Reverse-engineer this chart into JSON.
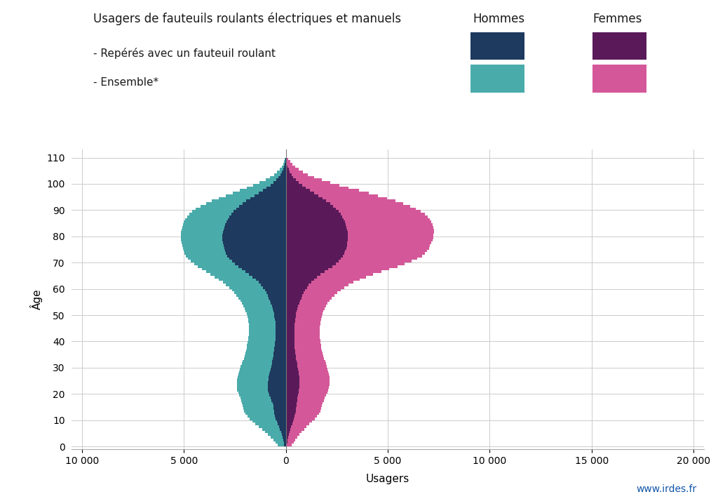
{
  "title_line1": "Usagers de fauteuils roulants électriques et manuels",
  "legend_hommes": "Hommes",
  "legend_femmes": "Femmes",
  "legend_reperes": "- Repérés avec un fauteuil roulant",
  "legend_ensemble": "- Ensemble*",
  "ylabel": "Âge",
  "xlabel": "Usagers",
  "watermark": "www.irdes.fr",
  "color_homme_reperes": "#1e3a5f",
  "color_homme_ensemble": "#4aabab",
  "color_femme_reperes": "#5a1a5a",
  "color_femme_ensemble": "#d45899",
  "xlim": [
    -10500,
    20500
  ],
  "ylim": [
    -1,
    113
  ],
  "xticks": [
    -10000,
    -5000,
    0,
    5000,
    10000,
    15000,
    20000
  ],
  "xticklabels": [
    "10 000",
    "5 000",
    "0",
    "5 000",
    "10 000",
    "15 000",
    "20 000"
  ],
  "yticks": [
    0,
    10,
    20,
    30,
    40,
    50,
    60,
    70,
    80,
    90,
    100,
    110
  ],
  "background_color": "#ffffff",
  "ages": [
    0,
    1,
    2,
    3,
    4,
    5,
    6,
    7,
    8,
    9,
    10,
    11,
    12,
    13,
    14,
    15,
    16,
    17,
    18,
    19,
    20,
    21,
    22,
    23,
    24,
    25,
    26,
    27,
    28,
    29,
    30,
    31,
    32,
    33,
    34,
    35,
    36,
    37,
    38,
    39,
    40,
    41,
    42,
    43,
    44,
    45,
    46,
    47,
    48,
    49,
    50,
    51,
    52,
    53,
    54,
    55,
    56,
    57,
    58,
    59,
    60,
    61,
    62,
    63,
    64,
    65,
    66,
    67,
    68,
    69,
    70,
    71,
    72,
    73,
    74,
    75,
    76,
    77,
    78,
    79,
    80,
    81,
    82,
    83,
    84,
    85,
    86,
    87,
    88,
    89,
    90,
    91,
    92,
    93,
    94,
    95,
    96,
    97,
    98,
    99,
    100,
    101,
    102,
    103,
    104,
    105,
    106,
    107,
    108,
    109
  ],
  "homme_reperes": [
    80,
    100,
    130,
    160,
    200,
    240,
    290,
    340,
    390,
    440,
    490,
    530,
    560,
    580,
    600,
    620,
    650,
    700,
    750,
    800,
    840,
    870,
    880,
    880,
    870,
    860,
    840,
    820,
    790,
    760,
    720,
    690,
    660,
    635,
    610,
    590,
    570,
    555,
    540,
    525,
    515,
    505,
    500,
    495,
    495,
    500,
    510,
    520,
    535,
    555,
    580,
    610,
    645,
    685,
    730,
    780,
    835,
    895,
    960,
    1030,
    1110,
    1210,
    1330,
    1470,
    1630,
    1800,
    1980,
    2160,
    2330,
    2490,
    2640,
    2770,
    2870,
    2940,
    2980,
    3020,
    3060,
    3090,
    3110,
    3120,
    3110,
    3090,
    3060,
    3020,
    2970,
    2910,
    2840,
    2760,
    2670,
    2570,
    2440,
    2290,
    2120,
    1940,
    1740,
    1540,
    1330,
    1130,
    940,
    760,
    600,
    460,
    350,
    260,
    185,
    130,
    85,
    55,
    32,
    18
  ],
  "homme_ensemble": [
    400,
    500,
    620,
    740,
    880,
    1020,
    1170,
    1330,
    1490,
    1640,
    1780,
    1890,
    1980,
    2040,
    2080,
    2110,
    2140,
    2180,
    2230,
    2280,
    2330,
    2380,
    2400,
    2410,
    2400,
    2380,
    2360,
    2330,
    2300,
    2260,
    2210,
    2160,
    2110,
    2065,
    2025,
    1990,
    1960,
    1930,
    1900,
    1875,
    1855,
    1840,
    1825,
    1815,
    1810,
    1815,
    1825,
    1840,
    1860,
    1890,
    1925,
    1970,
    2020,
    2080,
    2150,
    2230,
    2320,
    2420,
    2530,
    2650,
    2780,
    2930,
    3100,
    3280,
    3480,
    3690,
    3900,
    4110,
    4310,
    4490,
    4660,
    4800,
    4900,
    4970,
    5010,
    5040,
    5070,
    5100,
    5130,
    5150,
    5150,
    5140,
    5120,
    5090,
    5050,
    5000,
    4930,
    4840,
    4730,
    4590,
    4410,
    4180,
    3920,
    3620,
    3300,
    2960,
    2610,
    2260,
    1920,
    1590,
    1280,
    1000,
    770,
    575,
    420,
    295,
    200,
    130,
    78,
    44
  ],
  "femme_reperes": [
    60,
    75,
    95,
    120,
    150,
    185,
    225,
    270,
    315,
    360,
    405,
    440,
    470,
    490,
    505,
    515,
    530,
    550,
    575,
    600,
    625,
    645,
    658,
    665,
    665,
    660,
    650,
    638,
    620,
    600,
    575,
    550,
    525,
    502,
    482,
    465,
    450,
    438,
    428,
    422,
    418,
    415,
    414,
    415,
    418,
    424,
    433,
    445,
    460,
    480,
    505,
    535,
    570,
    610,
    655,
    705,
    760,
    820,
    885,
    955,
    1035,
    1130,
    1245,
    1380,
    1535,
    1710,
    1900,
    2090,
    2270,
    2440,
    2590,
    2710,
    2800,
    2870,
    2920,
    2960,
    2990,
    3015,
    3030,
    3040,
    3040,
    3030,
    3010,
    2980,
    2940,
    2890,
    2830,
    2760,
    2680,
    2590,
    2470,
    2330,
    2170,
    1990,
    1800,
    1600,
    1390,
    1180,
    980,
    800,
    630,
    488,
    370,
    275,
    198,
    138,
    91,
    57,
    34,
    18
  ],
  "femme_ensemble": [
    300,
    375,
    465,
    560,
    665,
    775,
    895,
    1025,
    1160,
    1290,
    1420,
    1530,
    1620,
    1690,
    1740,
    1775,
    1810,
    1855,
    1910,
    1970,
    2030,
    2080,
    2120,
    2145,
    2150,
    2148,
    2135,
    2115,
    2090,
    2060,
    2020,
    1975,
    1930,
    1885,
    1845,
    1810,
    1778,
    1750,
    1725,
    1705,
    1690,
    1680,
    1675,
    1673,
    1675,
    1680,
    1692,
    1710,
    1735,
    1765,
    1803,
    1850,
    1907,
    1975,
    2055,
    2150,
    2260,
    2385,
    2530,
    2695,
    2880,
    3090,
    3330,
    3610,
    3930,
    4290,
    4680,
    5080,
    5470,
    5840,
    6170,
    6460,
    6680,
    6840,
    6940,
    7020,
    7080,
    7140,
    7190,
    7230,
    7250,
    7260,
    7260,
    7240,
    7200,
    7140,
    7060,
    6950,
    6810,
    6630,
    6390,
    6100,
    5760,
    5380,
    4970,
    4530,
    4060,
    3580,
    3090,
    2620,
    2170,
    1760,
    1400,
    1090,
    830,
    620,
    450,
    315,
    210,
    130
  ]
}
